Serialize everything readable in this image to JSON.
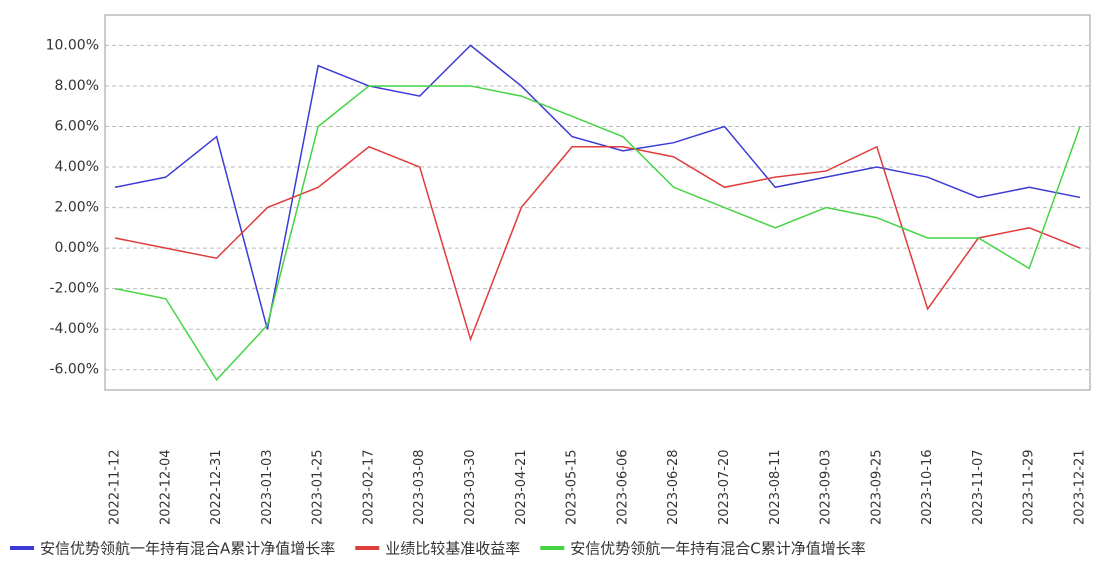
{
  "chart_data": {
    "type": "line",
    "categories": [
      "2022-11-12",
      "2022-12-04",
      "2022-12-31",
      "2023-01-03",
      "2023-01-25",
      "2023-02-17",
      "2023-03-08",
      "2023-03-30",
      "2023-04-21",
      "2023-05-15",
      "2023-06-06",
      "2023-06-28",
      "2023-07-20",
      "2023-08-11",
      "2023-09-03",
      "2023-09-25",
      "2023-10-16",
      "2023-11-07",
      "2023-11-29",
      "2023-12-21"
    ],
    "series": [
      {
        "name": "安信优势领航一年持有混合A累计净值增长率",
        "color": "#3b3bd6",
        "values": [
          3,
          3.5,
          5.5,
          -4,
          9,
          8,
          7.5,
          10,
          8,
          5.5,
          4.8,
          5.2,
          6,
          3,
          3.5,
          4,
          3.5,
          2.5,
          3,
          2.5
        ]
      },
      {
        "name": "业绩比较基准收益率",
        "color": "#e03c3c",
        "values": [
          0.5,
          0,
          -0.5,
          2,
          3,
          5,
          4,
          -4.5,
          2,
          5,
          5,
          4.5,
          3,
          3.5,
          3.8,
          5,
          -3,
          0.5,
          1,
          0
        ]
      },
      {
        "name": "安信优势领航一年持有混合C累计净值增长率",
        "color": "#44d444",
        "values": [
          -2,
          -2.5,
          -6.5,
          -3.8,
          6,
          8,
          8,
          8,
          7.5,
          6.5,
          5.5,
          3,
          2,
          1,
          2,
          1.5,
          0.5,
          0.5,
          -1,
          6
        ]
      }
    ],
    "ylim": [
      -7,
      11.5
    ],
    "yticks": [
      {
        "value": -6,
        "label": "-6.00%"
      },
      {
        "value": -4,
        "label": "-4.00%"
      },
      {
        "value": -2,
        "label": "-2.00%"
      },
      {
        "value": 0,
        "label": "0.00%"
      },
      {
        "value": 2,
        "label": "2.00%"
      },
      {
        "value": 4,
        "label": "4.00%"
      },
      {
        "value": 6,
        "label": "6.00%"
      },
      {
        "value": 8,
        "label": "8.00%"
      },
      {
        "value": 10,
        "label": "10.00%"
      }
    ],
    "grid": true
  }
}
